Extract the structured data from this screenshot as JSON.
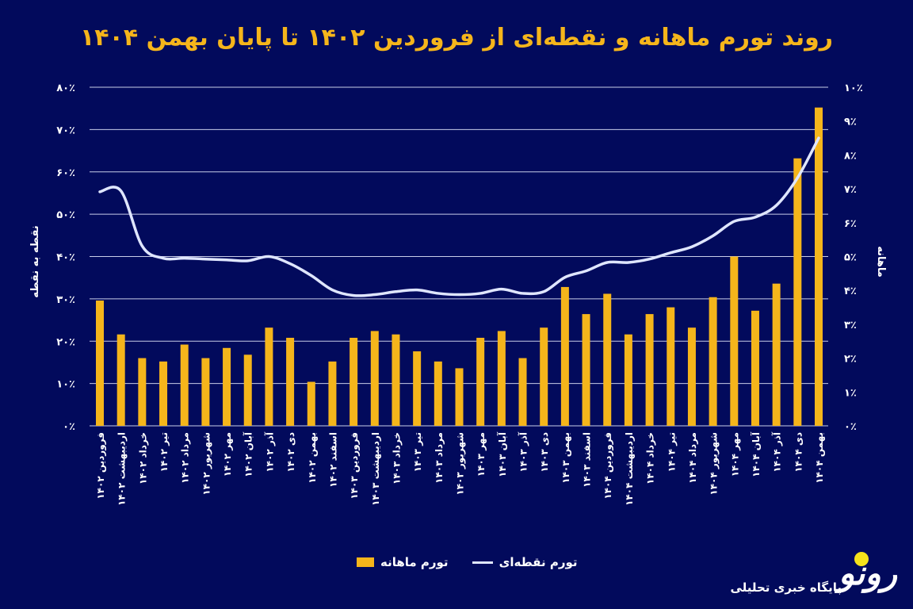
{
  "chart_data": {
    "type": "bar+line",
    "title": "روند تورم ماهانه و نقطه‌ای از فروردین ۱۴۰۲ تا پایان بهمن ۱۴۰۴",
    "categories": [
      "فروردین ۱۴۰۲",
      "اردیبهشت ۱۴۰۲",
      "خرداد ۱۴۰۲",
      "تیر ۱۴۰۲",
      "مرداد ۱۴۰۲",
      "شهریور ۱۴۰۲",
      "مهر ۱۴۰۲",
      "آبان ۱۴۰۲",
      "آذر ۱۴۰۲",
      "دی ۱۴۰۲",
      "بهمن ۱۴۰۲",
      "اسفند ۱۴۰۲",
      "فروردین ۱۴۰۳",
      "اردیبهشت ۱۴۰۳",
      "خرداد ۱۴۰۳",
      "تیر ۱۴۰۳",
      "مرداد ۱۴۰۳",
      "شهریور ۱۴۰۳",
      "مهر ۱۴۰۳",
      "آبان ۱۴۰۳",
      "آذر ۱۴۰۳",
      "دی ۱۴۰۳",
      "بهمن ۱۴۰۳",
      "اسفند ۱۴۰۳",
      "فروردین ۱۴۰۴",
      "اردیبهشت ۱۴۰۴",
      "خرداد ۱۴۰۴",
      "تیر ۱۴۰۴",
      "مرداد ۱۴۰۴",
      "شهریور ۱۴۰۴",
      "مهر ۱۴۰۴",
      "آبان ۱۴۰۴",
      "آذر ۱۴۰۴",
      "دی ۱۴۰۴",
      "بهمن ۱۴۰۴"
    ],
    "series": [
      {
        "name": "تورم ماهانه",
        "type": "bar",
        "axis": "right",
        "color": "#f5b51b",
        "values": [
          3.7,
          2.7,
          2.0,
          1.9,
          2.4,
          2.0,
          2.3,
          2.1,
          2.9,
          2.6,
          1.3,
          1.9,
          2.6,
          2.8,
          2.7,
          2.2,
          1.9,
          1.7,
          2.6,
          2.8,
          2.0,
          2.9,
          4.1,
          3.3,
          3.9,
          2.7,
          3.3,
          3.5,
          2.9,
          3.8,
          5.0,
          3.4,
          4.2,
          7.9,
          9.4
        ]
      },
      {
        "name": "تورم نقطه‌ای",
        "type": "line",
        "axis": "left",
        "color": "#dfe6ff",
        "values": [
          55.3,
          55.5,
          42.5,
          39.6,
          39.6,
          39.4,
          39.2,
          39.0,
          40.0,
          38.3,
          35.5,
          32.1,
          30.8,
          31.0,
          31.7,
          32.1,
          31.3,
          31.0,
          31.3,
          32.3,
          31.3,
          31.7,
          35.1,
          36.6,
          38.6,
          38.6,
          39.4,
          40.9,
          42.3,
          44.9,
          48.3,
          49.3,
          52.1,
          58.6,
          68.0
        ]
      }
    ],
    "y_left": {
      "label": "نقطه به نقطه",
      "range": [
        0,
        80
      ],
      "ticks": [
        "۰٪",
        "۱۰٪",
        "۲۰٪",
        "۳۰٪",
        "۴۰٪",
        "۵۰٪",
        "۶۰٪",
        "۷۰٪",
        "۸۰٪"
      ]
    },
    "y_right": {
      "label": "ماهانه",
      "range": [
        0,
        10
      ],
      "ticks": [
        "۰٪",
        "۱٪",
        "۲٪",
        "۳٪",
        "۴٪",
        "۵٪",
        "۶٪",
        "۷٪",
        "۸٪",
        "۹٪",
        "۱۰٪"
      ]
    },
    "grid": true,
    "legend_position": "bottom",
    "legend": [
      "تورم نقطه‌ای",
      "تورم ماهانه"
    ]
  },
  "branding": {
    "logo": "رونو",
    "tagline": "پایگاه خبری تحلیلی"
  },
  "colors": {
    "background": "#020a5c",
    "title": "#f5b51b"
  }
}
